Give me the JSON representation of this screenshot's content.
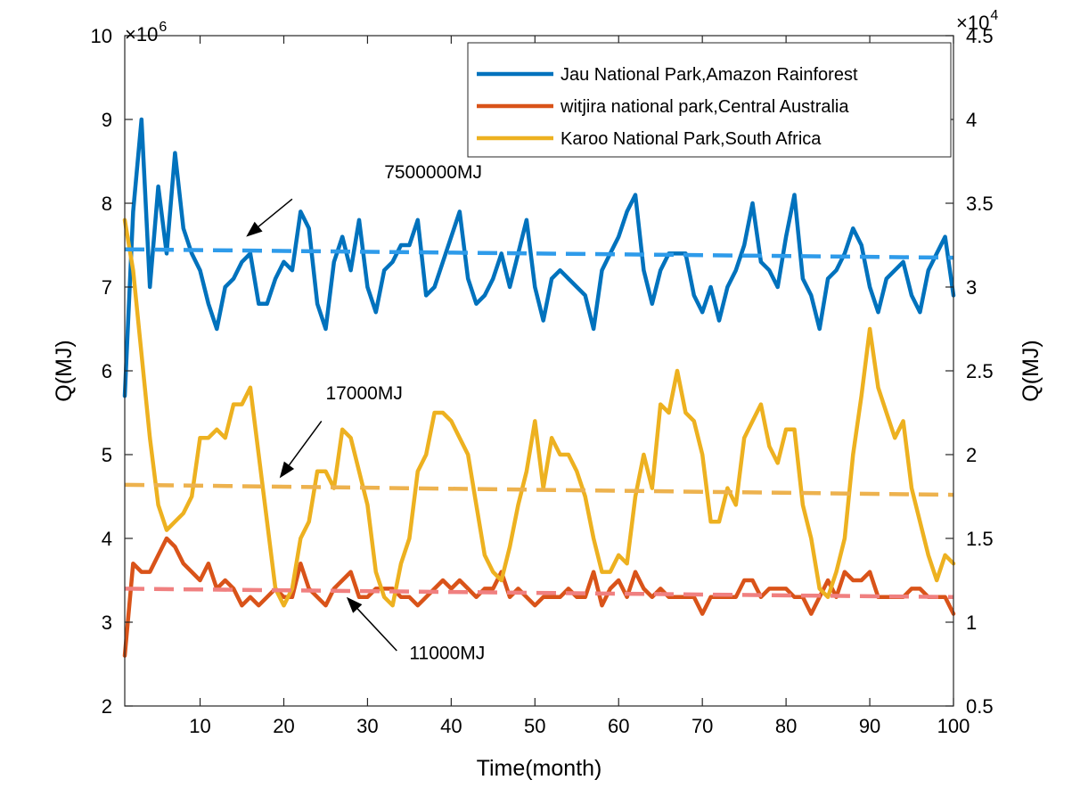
{
  "chart_data": {
    "type": "line",
    "xlabel": "Time(month)",
    "ylabel_left": "Q(MJ)",
    "ylabel_right": "Q(MJ)",
    "xlim": [
      1,
      100
    ],
    "ylim_left": [
      2,
      10
    ],
    "ylim_right": [
      0.5,
      4.5
    ],
    "x_ticks": [
      10,
      20,
      30,
      40,
      50,
      60,
      70,
      80,
      90,
      100
    ],
    "y_ticks_left": [
      2,
      3,
      4,
      5,
      6,
      7,
      8,
      9,
      10
    ],
    "y_ticks_right": [
      0.5,
      1,
      1.5,
      2,
      2.5,
      3,
      3.5,
      4,
      4.5
    ],
    "left_multiplier": {
      "base": "×10",
      "exponent": "6"
    },
    "right_multiplier": {
      "base": "×10",
      "exponent": "4"
    },
    "legend_position": "top-right",
    "grid": false,
    "series": [
      {
        "name": "Jau National Park,Amazon Rainforest",
        "axis": "left",
        "color": "#0072BD",
        "x": [
          1,
          2,
          3,
          4,
          5,
          6,
          7,
          8,
          9,
          10,
          11,
          12,
          13,
          14,
          15,
          16,
          17,
          18,
          19,
          20,
          21,
          22,
          23,
          24,
          25,
          26,
          27,
          28,
          29,
          30,
          31,
          32,
          33,
          34,
          35,
          36,
          37,
          38,
          39,
          40,
          41,
          42,
          43,
          44,
          45,
          46,
          47,
          48,
          49,
          50,
          51,
          52,
          53,
          54,
          55,
          56,
          57,
          58,
          59,
          60,
          61,
          62,
          63,
          64,
          65,
          66,
          67,
          68,
          69,
          70,
          71,
          72,
          73,
          74,
          75,
          76,
          77,
          78,
          79,
          80,
          81,
          82,
          83,
          84,
          85,
          86,
          87,
          88,
          89,
          90,
          91,
          92,
          93,
          94,
          95,
          96,
          97,
          98,
          99,
          100
        ],
        "y": [
          5.7,
          7.9,
          9.0,
          7.0,
          8.2,
          7.4,
          8.6,
          7.7,
          7.4,
          7.2,
          6.8,
          6.5,
          7.0,
          7.1,
          7.3,
          7.4,
          6.8,
          6.8,
          7.1,
          7.3,
          7.2,
          7.9,
          7.7,
          6.8,
          6.5,
          7.3,
          7.6,
          7.2,
          7.8,
          7.0,
          6.7,
          7.2,
          7.3,
          7.5,
          7.5,
          7.8,
          6.9,
          7.0,
          7.3,
          7.6,
          7.9,
          7.1,
          6.8,
          6.9,
          7.1,
          7.4,
          7.0,
          7.4,
          7.8,
          7.0,
          6.6,
          7.1,
          7.2,
          7.1,
          7.0,
          6.9,
          6.5,
          7.2,
          7.4,
          7.6,
          7.9,
          8.1,
          7.2,
          6.8,
          7.2,
          7.4,
          7.4,
          7.4,
          6.9,
          6.7,
          7.0,
          6.6,
          7.0,
          7.2,
          7.5,
          8.0,
          7.3,
          7.2,
          7.0,
          7.6,
          8.1,
          7.1,
          6.9,
          6.5,
          7.1,
          7.2,
          7.4,
          7.7,
          7.5,
          7.0,
          6.7,
          7.1,
          7.2,
          7.3,
          6.9,
          6.7,
          7.2,
          7.4,
          7.6,
          6.9
        ]
      },
      {
        "name": "witjira national park,Central Australia",
        "axis": "left",
        "color": "#D95319",
        "x": [
          1,
          2,
          3,
          4,
          5,
          6,
          7,
          8,
          9,
          10,
          11,
          12,
          13,
          14,
          15,
          16,
          17,
          18,
          19,
          20,
          21,
          22,
          23,
          24,
          25,
          26,
          27,
          28,
          29,
          30,
          31,
          32,
          33,
          34,
          35,
          36,
          37,
          38,
          39,
          40,
          41,
          42,
          43,
          44,
          45,
          46,
          47,
          48,
          49,
          50,
          51,
          52,
          53,
          54,
          55,
          56,
          57,
          58,
          59,
          60,
          61,
          62,
          63,
          64,
          65,
          66,
          67,
          68,
          69,
          70,
          71,
          72,
          73,
          74,
          75,
          76,
          77,
          78,
          79,
          80,
          81,
          82,
          83,
          84,
          85,
          86,
          87,
          88,
          89,
          90,
          91,
          92,
          93,
          94,
          95,
          96,
          97,
          98,
          99,
          100
        ],
        "y": [
          2.6,
          3.7,
          3.6,
          3.6,
          3.8,
          4.0,
          3.9,
          3.7,
          3.6,
          3.5,
          3.7,
          3.4,
          3.5,
          3.4,
          3.2,
          3.3,
          3.2,
          3.3,
          3.4,
          3.3,
          3.3,
          3.7,
          3.4,
          3.3,
          3.2,
          3.4,
          3.5,
          3.6,
          3.3,
          3.3,
          3.4,
          3.4,
          3.4,
          3.3,
          3.3,
          3.2,
          3.3,
          3.4,
          3.5,
          3.4,
          3.5,
          3.4,
          3.3,
          3.4,
          3.4,
          3.6,
          3.3,
          3.4,
          3.3,
          3.2,
          3.3,
          3.3,
          3.3,
          3.4,
          3.3,
          3.3,
          3.6,
          3.2,
          3.4,
          3.5,
          3.3,
          3.6,
          3.4,
          3.3,
          3.4,
          3.3,
          3.3,
          3.3,
          3.3,
          3.1,
          3.3,
          3.3,
          3.3,
          3.3,
          3.5,
          3.5,
          3.3,
          3.4,
          3.4,
          3.4,
          3.3,
          3.3,
          3.1,
          3.3,
          3.5,
          3.3,
          3.6,
          3.5,
          3.5,
          3.6,
          3.3,
          3.3,
          3.3,
          3.3,
          3.4,
          3.4,
          3.3,
          3.3,
          3.3,
          3.1
        ]
      },
      {
        "name": "Karoo National Park,South Africa",
        "axis": "right",
        "color": "#EDB120",
        "x": [
          1,
          2,
          3,
          4,
          5,
          6,
          7,
          8,
          9,
          10,
          11,
          12,
          13,
          14,
          15,
          16,
          17,
          18,
          19,
          20,
          21,
          22,
          23,
          24,
          25,
          26,
          27,
          28,
          29,
          30,
          31,
          32,
          33,
          34,
          35,
          36,
          37,
          38,
          39,
          40,
          41,
          42,
          43,
          44,
          45,
          46,
          47,
          48,
          49,
          50,
          51,
          52,
          53,
          54,
          55,
          56,
          57,
          58,
          59,
          60,
          61,
          62,
          63,
          64,
          65,
          66,
          67,
          68,
          69,
          70,
          71,
          72,
          73,
          74,
          75,
          76,
          77,
          78,
          79,
          80,
          81,
          82,
          83,
          84,
          85,
          86,
          87,
          88,
          89,
          90,
          91,
          92,
          93,
          94,
          95,
          96,
          97,
          98,
          99,
          100
        ],
        "y": [
          3.4,
          3.1,
          2.6,
          2.1,
          1.7,
          1.55,
          1.6,
          1.65,
          1.75,
          2.1,
          2.1,
          2.15,
          2.1,
          2.3,
          2.3,
          2.4,
          2.0,
          1.6,
          1.2,
          1.1,
          1.2,
          1.5,
          1.6,
          1.9,
          1.9,
          1.8,
          2.15,
          2.1,
          1.9,
          1.7,
          1.3,
          1.15,
          1.1,
          1.35,
          1.5,
          1.9,
          2.0,
          2.25,
          2.25,
          2.2,
          2.1,
          2.0,
          1.7,
          1.4,
          1.3,
          1.25,
          1.45,
          1.7,
          1.9,
          2.2,
          1.8,
          2.1,
          2.0,
          2.0,
          1.9,
          1.75,
          1.5,
          1.3,
          1.3,
          1.4,
          1.35,
          1.75,
          2.0,
          1.8,
          2.3,
          2.25,
          2.5,
          2.25,
          2.2,
          2.0,
          1.6,
          1.6,
          1.8,
          1.7,
          2.1,
          2.2,
          2.3,
          2.05,
          1.95,
          2.15,
          2.15,
          1.7,
          1.5,
          1.2,
          1.15,
          1.3,
          1.5,
          2.0,
          2.35,
          2.75,
          2.4,
          2.25,
          2.1,
          2.2,
          1.8,
          1.6,
          1.4,
          1.25,
          1.4,
          1.35
        ]
      }
    ],
    "reference_lines": [
      {
        "axis": "left",
        "color": "#2E9BEA",
        "x": [
          1,
          100
        ],
        "y": [
          7.45,
          7.35
        ]
      },
      {
        "axis": "left",
        "color": "#F08080",
        "x": [
          1,
          100
        ],
        "y": [
          3.4,
          3.3
        ]
      },
      {
        "axis": "right",
        "color": "#EDB24E",
        "x": [
          1,
          100
        ],
        "y": [
          1.82,
          1.76
        ]
      }
    ],
    "annotations": [
      {
        "text": "7500000MJ",
        "text_x": 32,
        "text_y": 8.3,
        "axis": "left",
        "arrow_from": [
          21,
          8.05
        ],
        "arrow_to": [
          15.5,
          7.6
        ]
      },
      {
        "text": "17000MJ",
        "text_x": 25,
        "text_y": 2.33,
        "axis": "right",
        "arrow_from": [
          24.5,
          2.2
        ],
        "arrow_to": [
          19.5,
          1.86
        ]
      },
      {
        "text": "11000MJ",
        "text_x": 35,
        "text_y": 0.78,
        "axis": "right",
        "arrow_from": [
          33.5,
          0.83
        ],
        "arrow_to": [
          27.5,
          1.15
        ]
      }
    ]
  }
}
